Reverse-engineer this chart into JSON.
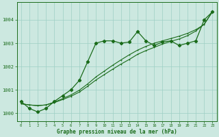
{
  "x": [
    0,
    1,
    2,
    3,
    4,
    5,
    6,
    7,
    8,
    9,
    10,
    11,
    12,
    13,
    14,
    15,
    16,
    17,
    18,
    19,
    20,
    21,
    22,
    23
  ],
  "pressure_main": [
    1000.5,
    1000.2,
    1000.05,
    1000.2,
    1000.5,
    1000.75,
    1001.0,
    1001.4,
    1002.2,
    1003.0,
    1003.1,
    1003.1,
    1003.0,
    1003.05,
    1003.5,
    1003.1,
    1002.9,
    1003.05,
    1003.1,
    1002.9,
    1003.0,
    1003.1,
    1004.0,
    1004.35
  ],
  "trend1": [
    1000.4,
    1000.35,
    1000.32,
    1000.35,
    1000.45,
    1000.58,
    1000.72,
    1000.9,
    1001.15,
    1001.42,
    1001.65,
    1001.88,
    1002.1,
    1002.3,
    1002.52,
    1002.68,
    1002.82,
    1002.96,
    1003.08,
    1003.18,
    1003.32,
    1003.52,
    1003.82,
    1004.35
  ],
  "trend2": [
    1000.4,
    1000.35,
    1000.32,
    1000.35,
    1000.47,
    1000.62,
    1000.78,
    1000.98,
    1001.25,
    1001.55,
    1001.8,
    1002.05,
    1002.28,
    1002.5,
    1002.7,
    1002.86,
    1003.0,
    1003.1,
    1003.2,
    1003.3,
    1003.42,
    1003.58,
    1003.8,
    1004.35
  ],
  "line_color": "#1a6b1a",
  "bg_color": "#cce8e0",
  "grid_color": "#9ecfc4",
  "text_color": "#1a6b1a",
  "ylabel_values": [
    1000,
    1001,
    1002,
    1003,
    1004
  ],
  "xlabel": "Graphe pression niveau de la mer (hPa)",
  "ylim": [
    999.65,
    1004.75
  ],
  "xlim": [
    -0.5,
    23.5
  ]
}
